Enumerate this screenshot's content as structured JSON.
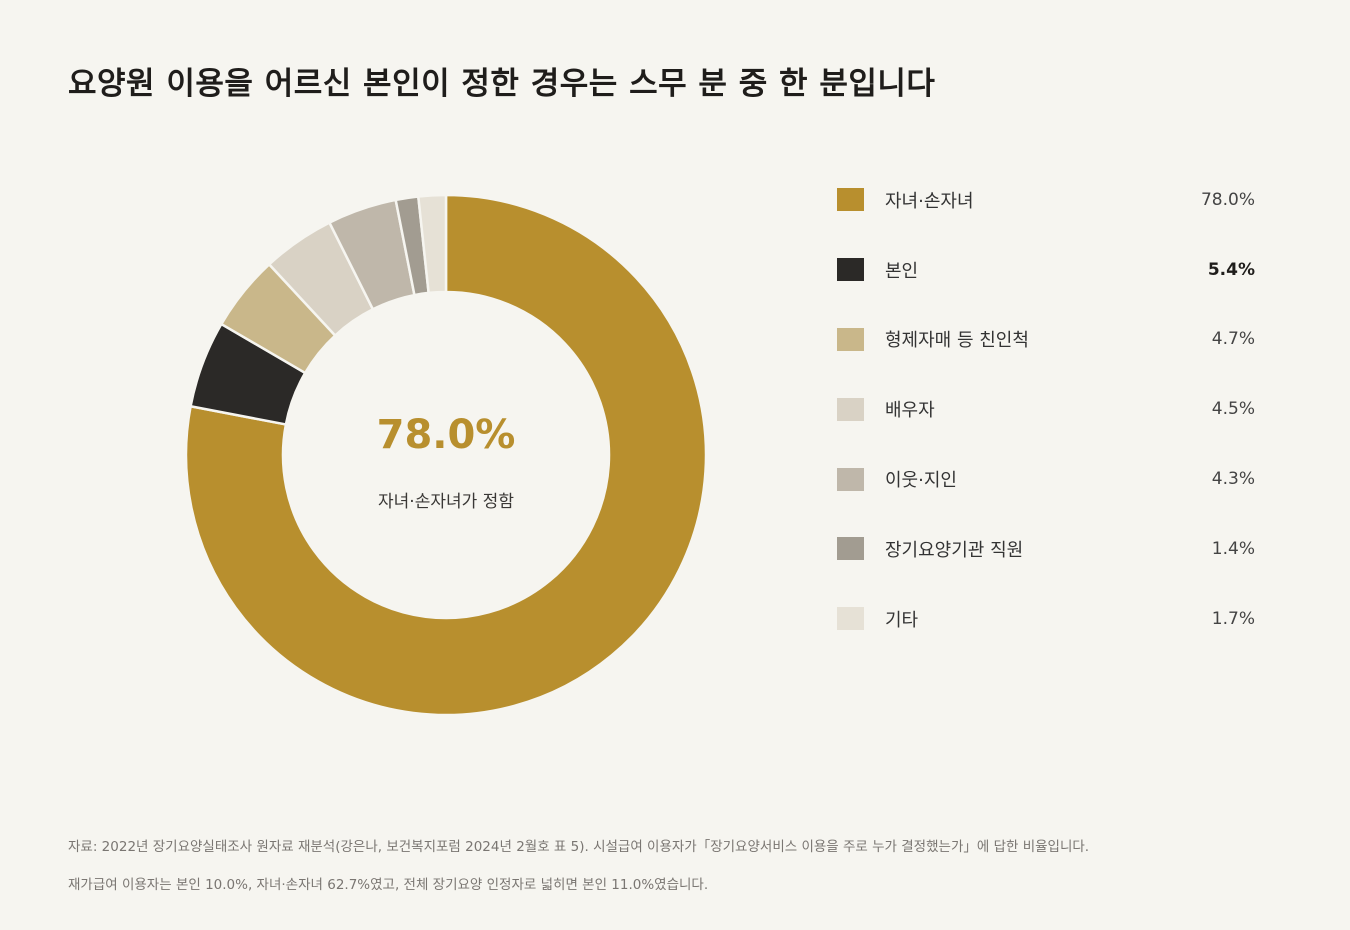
{
  "title": "요양원 이용을 어르신 본인이 정한 경우는 스무 분 중 한 분입니다",
  "center": {
    "value": "78.0%",
    "caption": "자녀·손자녀가 정함"
  },
  "chart_data": {
    "type": "pie",
    "variant": "donut",
    "legend_position": "right",
    "series": [
      {
        "name": "자녀·손자녀",
        "value": 78.0,
        "label": "78.0%",
        "color": "#b88f2e"
      },
      {
        "name": "본인",
        "value": 5.4,
        "label": "5.4%",
        "color": "#2b2927",
        "highlight": true
      },
      {
        "name": "형제자매 등 친인척",
        "value": 4.7,
        "label": "4.7%",
        "color": "#c9b78a"
      },
      {
        "name": "배우자",
        "value": 4.5,
        "label": "4.5%",
        "color": "#d9d2c5"
      },
      {
        "name": "이웃·지인",
        "value": 4.3,
        "label": "4.3%",
        "color": "#bfb7aa"
      },
      {
        "name": "장기요양기관 직원",
        "value": 1.4,
        "label": "1.4%",
        "color": "#a29c91"
      },
      {
        "name": "기타",
        "value": 1.7,
        "label": "1.7%",
        "color": "#e6e1d6"
      }
    ]
  },
  "notes": [
    "자료: 2022년 장기요양실태조사 원자료 재분석(강은나, 보건복지포럼 2024년 2월호 표 5). 시설급여 이용자가「장기요양서비스 이용을 주로 누가 결정했는가」에 답한 비율입니다.",
    "재가급여 이용자는 본인 10.0%, 자녀·손자녀 62.7%였고, 전체 장기요양 인정자로 넓히면 본인 11.0%였습니다."
  ]
}
